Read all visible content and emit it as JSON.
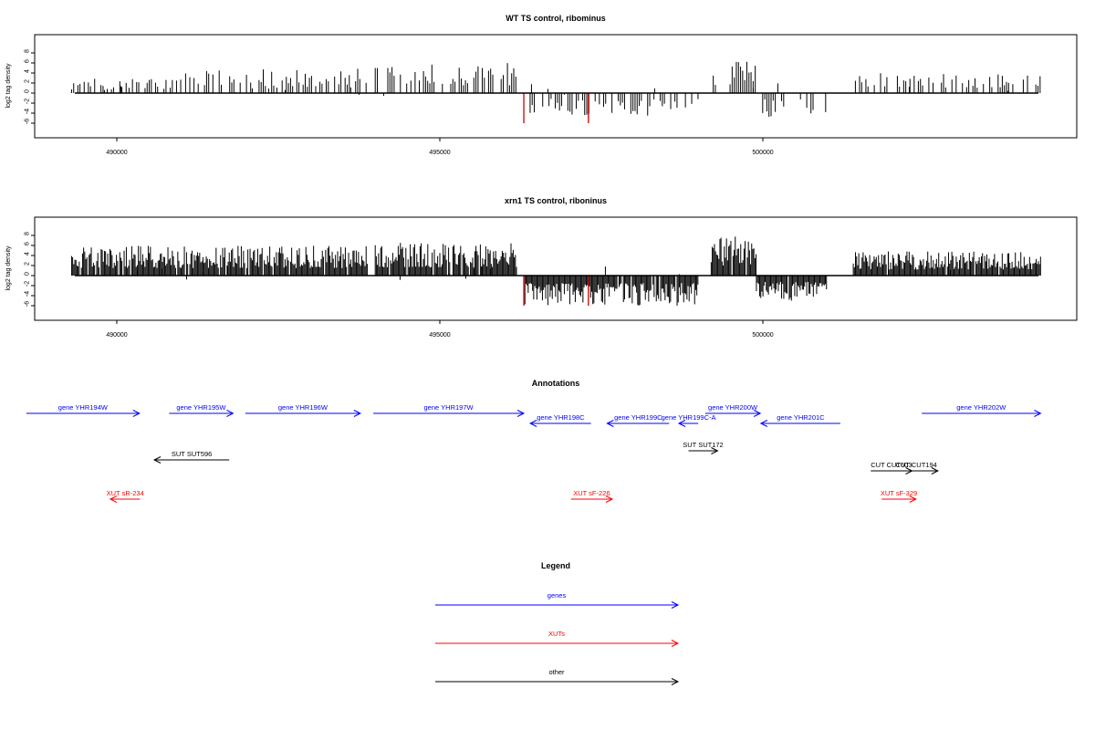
{
  "chart_data": [
    {
      "type": "bar",
      "title": "WT TS control, ribominus",
      "xlabel": "",
      "ylabel": "log2 tag density",
      "xlim": [
        488600,
        504700
      ],
      "ylim": [
        -6,
        8.8
      ],
      "x_ticks": [
        "490000",
        "495000",
        "500000"
      ],
      "y_ticks": [
        "8",
        "6",
        "4",
        "2",
        "0",
        "-2",
        "-4",
        "-6"
      ],
      "grid": false,
      "bars": {
        "note": "Positive (plus strand) and negative (minus strand) log2 tag density bars; dense black spikes in expressed regions",
        "segments": [
          {
            "start": 489300,
            "end": 491000,
            "strand": 1,
            "max": 3
          },
          {
            "start": 491000,
            "end": 493900,
            "strand": 1,
            "max": 5
          },
          {
            "start": 494000,
            "end": 496200,
            "strand": 1,
            "max": 6
          },
          {
            "start": 496300,
            "end": 499000,
            "strand": -1,
            "max": -4.5
          },
          {
            "start": 499200,
            "end": 499900,
            "strand": 1,
            "max": 6.3
          },
          {
            "start": 499900,
            "end": 501000,
            "strand": -1,
            "max": -5
          },
          {
            "start": 501400,
            "end": 504300,
            "strand": 1,
            "max": 4
          }
        ],
        "highlight": [
          {
            "x": 496300,
            "value": -6,
            "color": "#cc0000"
          },
          {
            "x": 497300,
            "value": -6,
            "color": "#cc0000"
          }
        ]
      }
    },
    {
      "type": "bar",
      "title": "xrn1 TS control, riboninus",
      "xlabel": "",
      "ylabel": "log2 tag density",
      "xlim": [
        488600,
        504700
      ],
      "ylim": [
        -6,
        8.8
      ],
      "x_ticks": [
        "490000",
        "495000",
        "500000"
      ],
      "y_ticks": [
        "8",
        "6",
        "4",
        "2",
        "0",
        "-2",
        "-4",
        "-6"
      ],
      "grid": false,
      "bars": {
        "segments": [
          {
            "start": 489300,
            "end": 493900,
            "strand": 1,
            "max": 6
          },
          {
            "start": 494000,
            "end": 496200,
            "strand": 1,
            "max": 6.6
          },
          {
            "start": 496300,
            "end": 499000,
            "strand": -1,
            "max": -6
          },
          {
            "start": 499200,
            "end": 499900,
            "strand": 1,
            "max": 8
          },
          {
            "start": 499900,
            "end": 501000,
            "strand": -1,
            "max": -5
          },
          {
            "start": 501400,
            "end": 504300,
            "strand": 1,
            "max": 4.8
          }
        ],
        "highlight": [
          {
            "x": 496300,
            "value": -6,
            "color": "#cc0000"
          },
          {
            "x": 497300,
            "value": -6,
            "color": "#cc0000"
          }
        ]
      }
    },
    {
      "type": "annotation",
      "title": "Annotations",
      "features": [
        {
          "label": "gene YHR194W",
          "color": "#0000ff",
          "start": 488600,
          "end": 490350,
          "dir": "right",
          "row": 0
        },
        {
          "label": "gene YHR195W",
          "color": "#0000ff",
          "start": 490810,
          "end": 491800,
          "dir": "right",
          "row": 0
        },
        {
          "label": "gene YHR196W",
          "color": "#0000ff",
          "start": 491990,
          "end": 493770,
          "dir": "right",
          "row": 0
        },
        {
          "label": "gene YHR197W",
          "color": "#0000ff",
          "start": 493970,
          "end": 496300,
          "dir": "right",
          "row": 0
        },
        {
          "label": "gene YHR198C",
          "color": "#0000ff",
          "start": 496400,
          "end": 497340,
          "dir": "left",
          "row": 1
        },
        {
          "label": "gene YHR199C",
          "color": "#0000ff",
          "start": 497590,
          "end": 498550,
          "dir": "left",
          "row": 1
        },
        {
          "label": "gene YHR199C-A",
          "color": "#0000ff",
          "start": 498700,
          "end": 499000,
          "dir": "left",
          "row": 1
        },
        {
          "label": "gene YHR200W",
          "color": "#0000ff",
          "start": 499110,
          "end": 499960,
          "dir": "right",
          "row": 0
        },
        {
          "label": "gene YHR201C",
          "color": "#0000ff",
          "start": 499970,
          "end": 501200,
          "dir": "left",
          "row": 1
        },
        {
          "label": "gene YHR202W",
          "color": "#0000ff",
          "start": 502460,
          "end": 504300,
          "dir": "right",
          "row": 0
        },
        {
          "label": "SUT SUT596",
          "color": "#000000",
          "start": 490580,
          "end": 491740,
          "dir": "left",
          "row": 2
        },
        {
          "label": "SUT SUT172",
          "color": "#000000",
          "start": 498850,
          "end": 499300,
          "dir": "right",
          "row": 3
        },
        {
          "label": "CUT CUT603",
          "color": "#000000",
          "start": 501670,
          "end": 502310,
          "dir": "right",
          "row": 4
        },
        {
          "label": "CUT CUT194",
          "color": "#000000",
          "start": 502040,
          "end": 502710,
          "dir": "right",
          "row": 4
        },
        {
          "label": "XUT sR-234",
          "color": "#ff0000",
          "start": 489900,
          "end": 490360,
          "dir": "left",
          "row": 5
        },
        {
          "label": "XUT sF-226",
          "color": "#ff0000",
          "start": 497030,
          "end": 497670,
          "dir": "right",
          "row": 5
        },
        {
          "label": "XUT sF-329",
          "color": "#ff0000",
          "start": 501840,
          "end": 502370,
          "dir": "right",
          "row": 5
        }
      ]
    },
    {
      "type": "legend",
      "title": "Legend",
      "entries": [
        {
          "label": "genes",
          "color": "#0000ff"
        },
        {
          "label": "XUTs",
          "color": "#ff0000"
        },
        {
          "label": "other",
          "color": "#000000"
        }
      ]
    }
  ]
}
